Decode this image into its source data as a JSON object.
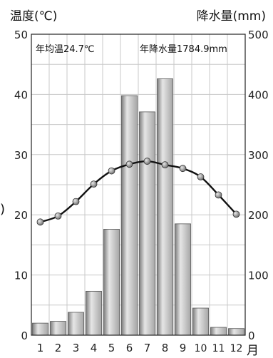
{
  "chart_data": {
    "type": "bar+line",
    "left_axis_title": "温度(℃)",
    "right_axis_title": "降水量(mm)",
    "x_unit_label": "月",
    "categories": [
      "1",
      "2",
      "3",
      "4",
      "5",
      "6",
      "7",
      "8",
      "9",
      "10",
      "11",
      "12"
    ],
    "annual_mean_temperature_label": "年均温24.7℃",
    "annual_precipitation_label": "年降水量1784.9mm",
    "left_axis": {
      "min": 0,
      "max": 50,
      "ticks": [
        0,
        10,
        20,
        30,
        40,
        50
      ]
    },
    "right_axis": {
      "min": 0,
      "max": 500,
      "ticks": [
        0,
        100,
        200,
        300,
        400,
        500
      ]
    },
    "series": [
      {
        "kind": "bar",
        "axis": "right",
        "values": [
          20,
          23,
          38,
          73,
          176,
          398,
          371,
          426,
          185,
          45,
          13,
          11
        ]
      },
      {
        "kind": "line",
        "axis": "left",
        "values": [
          18.8,
          19.8,
          22.2,
          25.1,
          27.3,
          28.4,
          28.9,
          28.3,
          27.7,
          26.3,
          23.3,
          20.1
        ]
      }
    ],
    "grid": true,
    "bar_color": "#b8b8b8",
    "line_color": "#111111",
    "marker_color": "#8c8c8c"
  }
}
